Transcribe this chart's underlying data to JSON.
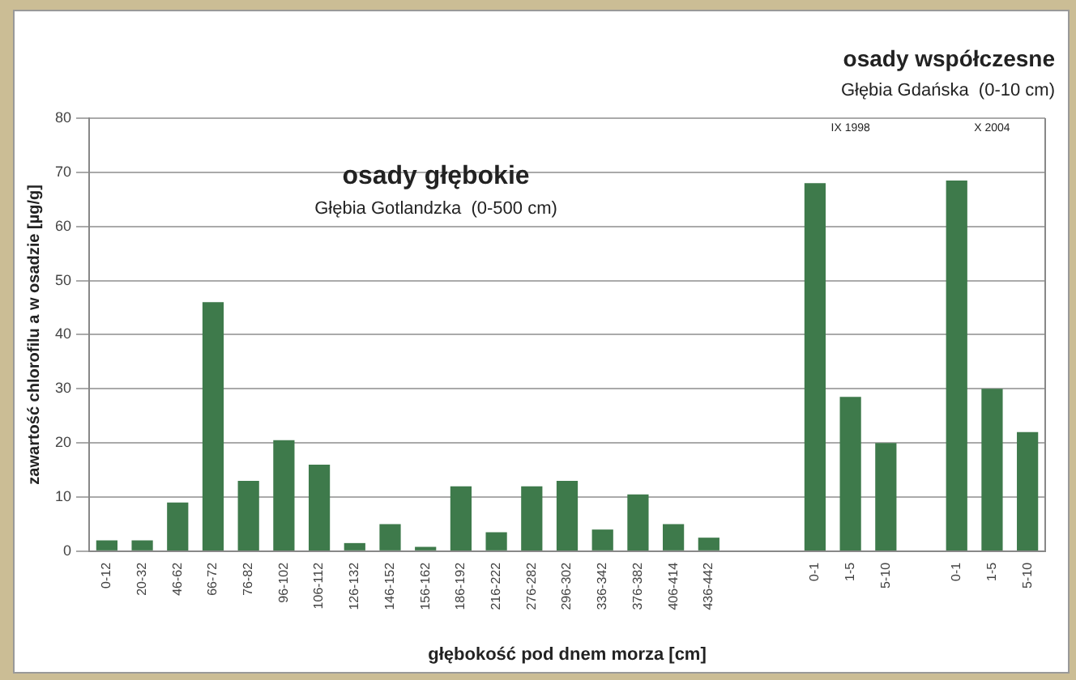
{
  "chart_data": {
    "type": "bar",
    "xlabel": "głębokość pod dnem morza [cm]",
    "ylabel": "zawartość chlorofilu a w osadzie [µg/g]",
    "categories": [
      "0-12",
      "20-32",
      "46-62",
      "66-72",
      "76-82",
      "96-102",
      "106-112",
      "126-132",
      "146-152",
      "156-162",
      "186-192",
      "216-222",
      "276-282",
      "296-302",
      "336-342",
      "376-382",
      "406-414",
      "436-442",
      null,
      null,
      "0-1",
      "1-5",
      "5-10",
      null,
      "0-1",
      "1-5",
      "5-10"
    ],
    "values": [
      2,
      2,
      9,
      46,
      13,
      20.5,
      16,
      1.5,
      5,
      0.8,
      12,
      3.5,
      12,
      13,
      4,
      10.5,
      5,
      2.5,
      null,
      null,
      68,
      28.5,
      20,
      null,
      68.5,
      30,
      22
    ],
    "color": "#3e7a4b",
    "ylim": [
      0,
      80
    ],
    "yticks": [
      0,
      10,
      20,
      30,
      40,
      50,
      60,
      70,
      80
    ],
    "grid": "y",
    "annotations": [
      "osady głębokie",
      "Głębia Gotlandzka  (0-500 cm)",
      "osady współczesne",
      "Głębia Gdańska  (0-10 cm)",
      "IX 1998",
      "X 2004"
    ]
  }
}
